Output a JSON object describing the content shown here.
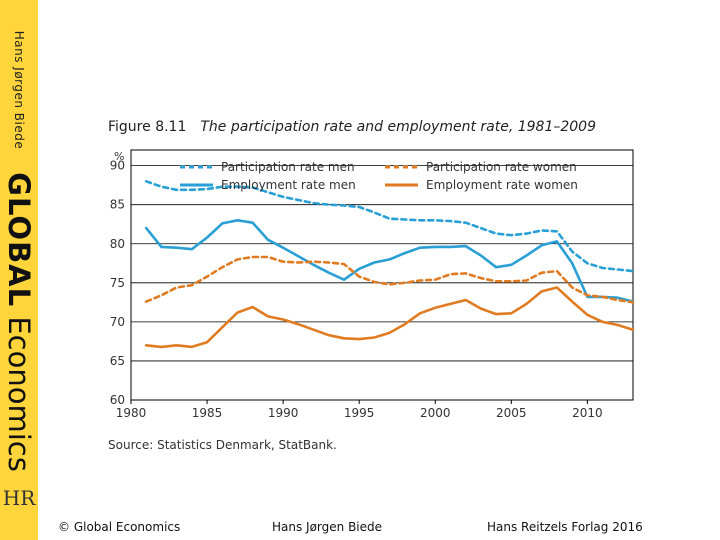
{
  "sidebar": {
    "author": "Hans Jørgen Biede",
    "title_bold": "GLOBAL",
    "title_rest": "Economics",
    "logo": "HR"
  },
  "figure": {
    "number": "Figure 8.11",
    "title": "The participation rate and employment rate, 1981–2009",
    "source": "Source: Statistics Denmark, StatBank."
  },
  "footer": {
    "left": "© Global Economics",
    "center": "Hans Jørgen Biede",
    "right": "Hans Reitzels Forlag 2016"
  },
  "chart_data": {
    "type": "line",
    "title": "The participation rate and employment rate, 1981–2009",
    "ylabel": "%",
    "xlabel": "",
    "xlim": [
      1980,
      2013
    ],
    "ylim": [
      60,
      92
    ],
    "xticks": [
      1980,
      1985,
      1990,
      1995,
      2000,
      2005,
      2010
    ],
    "yticks": [
      60,
      65,
      70,
      75,
      80,
      85,
      90
    ],
    "grid": "horizontal",
    "legend": "top",
    "series": [
      {
        "name": "Participation rate men",
        "color": "#2a9fd6",
        "dash": true,
        "x": [
          1981,
          1982,
          1983,
          1984,
          1985,
          1986,
          1987,
          1988,
          1989,
          1990,
          1991,
          1992,
          1993,
          1994,
          1995,
          1996,
          1997,
          1998,
          1999,
          2000,
          2001,
          2002,
          2003,
          2004,
          2005,
          2006,
          2007,
          2008,
          2009,
          2010,
          2011,
          2012,
          2013
        ],
        "y": [
          88,
          87.3,
          86.9,
          86.9,
          87,
          87.3,
          87.3,
          87.2,
          86.6,
          86,
          85.6,
          85.2,
          85,
          84.9,
          84.7,
          84,
          83.2,
          83.1,
          83,
          83,
          82.9,
          82.7,
          82,
          81.3,
          81.1,
          81.3,
          81.7,
          81.6,
          79,
          77.5,
          76.9,
          76.7,
          76.5
        ]
      },
      {
        "name": "Employment rate men",
        "color": "#2a9fd6",
        "dash": false,
        "x": [
          1981,
          1982,
          1983,
          1984,
          1985,
          1986,
          1987,
          1988,
          1989,
          1990,
          1991,
          1992,
          1993,
          1994,
          1995,
          1996,
          1997,
          1998,
          1999,
          2000,
          2001,
          2002,
          2003,
          2004,
          2005,
          2006,
          2007,
          2008,
          2009,
          2010,
          2011,
          2012,
          2013
        ],
        "y": [
          82,
          79.6,
          79.5,
          79.3,
          80.8,
          82.6,
          83,
          82.7,
          80.5,
          79.5,
          78.4,
          77.3,
          76.3,
          75.4,
          76.8,
          77.6,
          78,
          78.8,
          79.5,
          79.6,
          79.6,
          79.7,
          78.5,
          77,
          77.3,
          78.5,
          79.8,
          80.3,
          77.5,
          73.2,
          73.2,
          73.1,
          72.6
        ]
      },
      {
        "name": "Participation rate women",
        "color": "#e07b22",
        "dash": true,
        "x": [
          1981,
          1982,
          1983,
          1984,
          1985,
          1986,
          1987,
          1988,
          1989,
          1990,
          1991,
          1992,
          1993,
          1994,
          1995,
          1996,
          1997,
          1998,
          1999,
          2000,
          2001,
          2002,
          2003,
          2004,
          2005,
          2006,
          2007,
          2008,
          2009,
          2010,
          2011,
          2012,
          2013
        ],
        "y": [
          72.6,
          73.4,
          74.4,
          74.7,
          75.8,
          77,
          78,
          78.3,
          78.3,
          77.7,
          77.6,
          77.7,
          77.6,
          77.4,
          75.8,
          75.1,
          74.8,
          75,
          75.3,
          75.4,
          76.1,
          76.2,
          75.6,
          75.2,
          75.2,
          75.3,
          76.3,
          76.5,
          74.4,
          73.4,
          73.2,
          72.8,
          72.5
        ]
      },
      {
        "name": "Employment rate women",
        "color": "#e07b22",
        "dash": false,
        "x": [
          1981,
          1982,
          1983,
          1984,
          1985,
          1986,
          1987,
          1988,
          1989,
          1990,
          1991,
          1992,
          1993,
          1994,
          1995,
          1996,
          1997,
          1998,
          1999,
          2000,
          2001,
          2002,
          2003,
          2004,
          2005,
          2006,
          2007,
          2008,
          2009,
          2010,
          2011,
          2012,
          2013
        ],
        "y": [
          67,
          66.8,
          67,
          66.8,
          67.4,
          69.3,
          71.2,
          71.9,
          70.7,
          70.3,
          69.7,
          69,
          68.3,
          67.9,
          67.8,
          68,
          68.6,
          69.7,
          71.1,
          71.8,
          72.3,
          72.8,
          71.7,
          71,
          71.1,
          72.3,
          73.9,
          74.4,
          72.6,
          70.9,
          70,
          69.6,
          69
        ]
      }
    ]
  }
}
